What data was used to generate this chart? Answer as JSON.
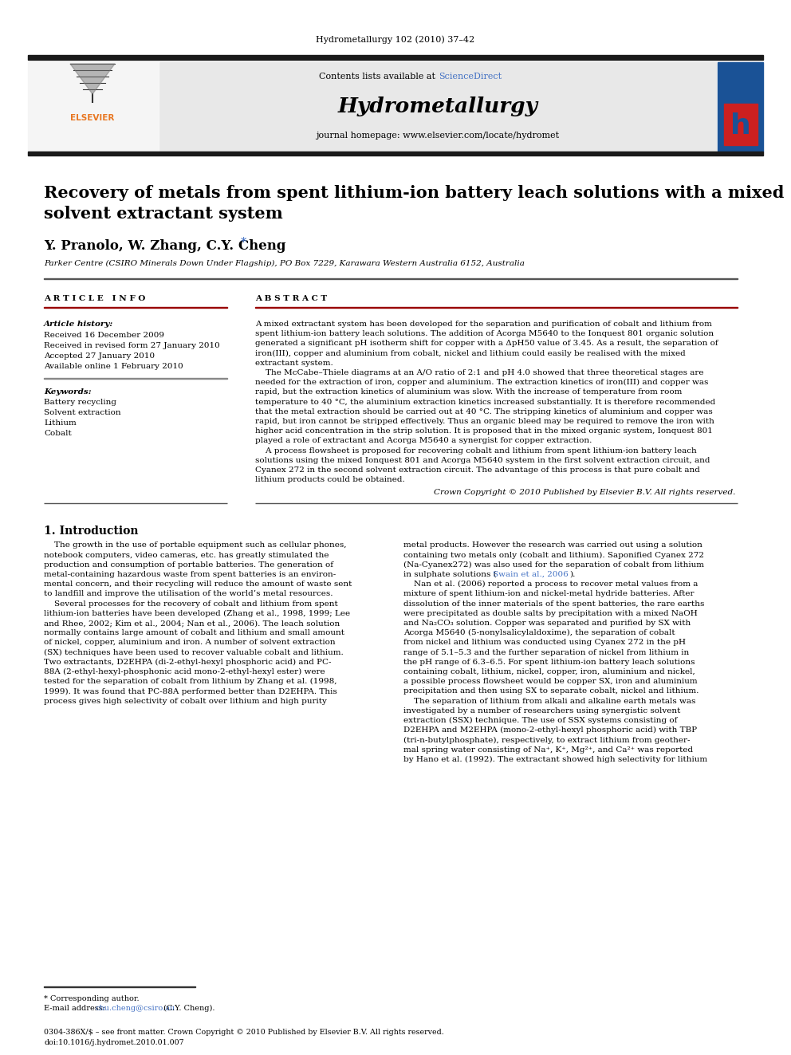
{
  "journal_header": "Hydrometallurgy 102 (2010) 37–42",
  "journal_name": "Hydrometallurgy",
  "contents_line": "Contents lists available at ScienceDirect",
  "homepage_line": "journal homepage: www.elsevier.com/locate/hydromet",
  "sciencedirect_color": "#4472C4",
  "title": "Recovery of metals from spent lithium-ion battery leach solutions with a mixed\nsolvent extractant system",
  "authors": "Y. Pranolo, W. Zhang, C.Y. Cheng",
  "affiliation": "Parker Centre (CSIRO Minerals Down Under Flagship), PO Box 7229, Karawara Western Australia 6152, Australia",
  "article_info_label": "A R T I C L E   I N F O",
  "abstract_label": "A B S T R A C T",
  "article_history_label": "Article history:",
  "received1": "Received 16 December 2009",
  "received2": "Received in revised form 27 January 2010",
  "accepted": "Accepted 27 January 2010",
  "available": "Available online 1 February 2010",
  "keywords_label": "Keywords:",
  "keywords": [
    "Battery recycling",
    "Solvent extraction",
    "Lithium",
    "Cobalt"
  ],
  "copyright": "Crown Copyright © 2010 Published by Elsevier B.V. All rights reserved.",
  "section1_title": "1. Introduction",
  "footnote_author": "* Corresponding author.",
  "footnote_email_prefix": "E-mail address: ",
  "footnote_email": "chu.cheng@csiro.au",
  "footnote_email_suffix": " (C.Y. Cheng).",
  "footer_line1": "0304-386X/$ – see front matter. Crown Copyright © 2010 Published by Elsevier B.V. All rights reserved.",
  "footer_line2": "doi:10.1016/j.hydromet.2010.01.007",
  "bg_color": "#ffffff",
  "header_bg": "#e8e8e8",
  "dark_bar_color": "#1a1a1a",
  "text_color": "#000000",
  "link_color": "#4472C4",
  "elsevier_orange": "#E87722",
  "dark_red_rule": "#990000",
  "abstract_lines": [
    "A mixed extractant system has been developed for the separation and purification of cobalt and lithium from",
    "spent lithium-ion battery leach solutions. The addition of Acorga M5640 to the Ionquest 801 organic solution",
    "generated a significant pH isotherm shift for copper with a ΔpH50 value of 3.45. As a result, the separation of",
    "iron(III), copper and aluminium from cobalt, nickel and lithium could easily be realised with the mixed",
    "extractant system.",
    "    The McCabe–Thiele diagrams at an A/O ratio of 2:1 and pH 4.0 showed that three theoretical stages are",
    "needed for the extraction of iron, copper and aluminium. The extraction kinetics of iron(III) and copper was",
    "rapid, but the extraction kinetics of aluminium was slow. With the increase of temperature from room",
    "temperature to 40 °C, the aluminium extraction kinetics increased substantially. It is therefore recommended",
    "that the metal extraction should be carried out at 40 °C. The stripping kinetics of aluminium and copper was",
    "rapid, but iron cannot be stripped effectively. Thus an organic bleed may be required to remove the iron with",
    "higher acid concentration in the strip solution. It is proposed that in the mixed organic system, Ionquest 801",
    "played a role of extractant and Acorga M5640 a synergist for copper extraction.",
    "    A process flowsheet is proposed for recovering cobalt and lithium from spent lithium-ion battery leach",
    "solutions using the mixed Ionquest 801 and Acorga M5640 system in the first solvent extraction circuit, and",
    "Cyanex 272 in the second solvent extraction circuit. The advantage of this process is that pure cobalt and",
    "lithium products could be obtained."
  ],
  "intro_col1_lines": [
    "    The growth in the use of portable equipment such as cellular phones,",
    "notebook computers, video cameras, etc. has greatly stimulated the",
    "production and consumption of portable batteries. The generation of",
    "metal-containing hazardous waste from spent batteries is an environ-",
    "mental concern, and their recycling will reduce the amount of waste sent",
    "to landfill and improve the utilisation of the world’s metal resources.",
    "    Several processes for the recovery of cobalt and lithium from spent",
    "lithium-ion batteries have been developed (Zhang et al., 1998, 1999; Lee",
    "and Rhee, 2002; Kim et al., 2004; Nan et al., 2006). The leach solution",
    "normally contains large amount of cobalt and lithium and small amount",
    "of nickel, copper, aluminium and iron. A number of solvent extraction",
    "(SX) techniques have been used to recover valuable cobalt and lithium.",
    "Two extractants, D2EHPA (di-2-ethyl-hexyl phosphoric acid) and PC-",
    "88A (2-ethyl-hexyl-phosphonic acid mono-2-ethyl-hexyl ester) were",
    "tested for the separation of cobalt from lithium by Zhang et al. (1998,",
    "1999). It was found that PC-88A performed better than D2EHPA. This",
    "process gives high selectivity of cobalt over lithium and high purity"
  ],
  "intro_col2_lines": [
    "metal products. However the research was carried out using a solution",
    "containing two metals only (cobalt and lithium). Saponified Cyanex 272",
    "(Na-Cyanex272) was also used for the separation of cobalt from lithium",
    "in sulphate solutions (Swain et al., 2006).",
    "    Nan et al. (2006) reported a process to recover metal values from a",
    "mixture of spent lithium-ion and nickel-metal hydride batteries. After",
    "dissolution of the inner materials of the spent batteries, the rare earths",
    "were precipitated as double salts by precipitation with a mixed NaOH",
    "and Na₂CO₃ solution. Copper was separated and purified by SX with",
    "Acorga M5640 (5-nonylsalicylaldoxime), the separation of cobalt",
    "from nickel and lithium was conducted using Cyanex 272 in the pH",
    "range of 5.1–5.3 and the further separation of nickel from lithium in",
    "the pH range of 6.3–6.5. For spent lithium-ion battery leach solutions",
    "containing cobalt, lithium, nickel, copper, iron, aluminium and nickel,",
    "a possible process flowsheet would be copper SX, iron and aluminium",
    "precipitation and then using SX to separate cobalt, nickel and lithium.",
    "    The separation of lithium from alkali and alkaline earth metals was",
    "investigated by a number of researchers using synergistic solvent",
    "extraction (SSX) technique. The use of SSX systems consisting of",
    "D2EHPA and M2EHPA (mono-2-ethyl-hexyl phosphoric acid) with TBP",
    "(tri-n-butylphosphate), respectively, to extract lithium from geother-",
    "mal spring water consisting of Na⁺, K⁺, Mg²⁺, and Ca²⁺ was reported",
    "by Hano et al. (1992). The extractant showed high selectivity for lithium"
  ]
}
